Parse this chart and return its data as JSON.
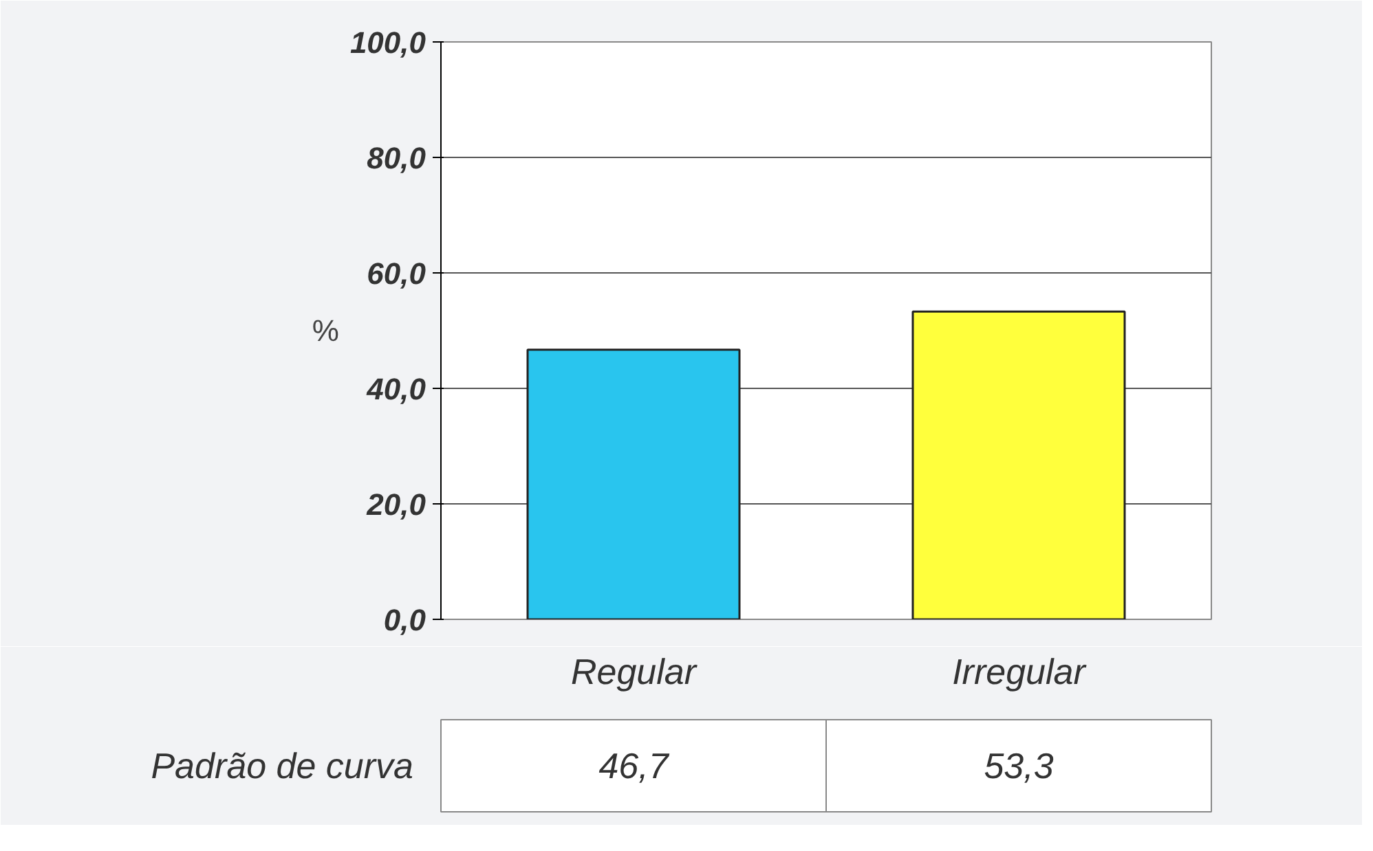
{
  "chart_data": {
    "type": "bar",
    "ylabel": "%",
    "categories": [
      "Regular",
      "Irregular"
    ],
    "series": [
      {
        "name": "Padrão de curva",
        "values": [
          46.7,
          53.3
        ],
        "colors": [
          "#29c5ee",
          "#ffff3c"
        ],
        "value_labels": [
          "46,7",
          "53,3"
        ]
      }
    ],
    "ylim": [
      0,
      100
    ],
    "yticks": [
      {
        "value": 0,
        "label": "0,0"
      },
      {
        "value": 20,
        "label": "20,0"
      },
      {
        "value": 40,
        "label": "40,0"
      },
      {
        "value": 60,
        "label": "60,0"
      },
      {
        "value": 80,
        "label": "80,0"
      },
      {
        "value": 100,
        "label": "100,0"
      }
    ],
    "grid": "y",
    "legend": false
  }
}
